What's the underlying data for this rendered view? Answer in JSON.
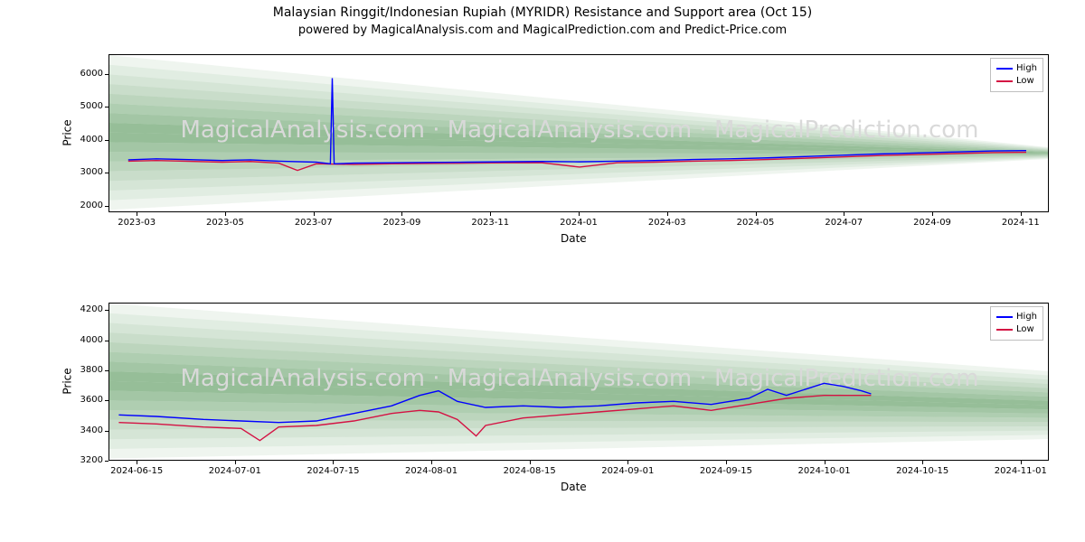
{
  "title": "Malaysian Ringgit/Indonesian Rupiah (MYRIDR) Resistance and Support area (Oct 15)",
  "subtitle": "powered by MagicalAnalysis.com and MagicalPrediction.com and Predict-Price.com",
  "watermark": "MagicalAnalysis.com · MagicalAnalysis.com · MagicalPrediction.com",
  "legend": {
    "high": "High",
    "low": "Low"
  },
  "colors": {
    "high_line": "#0000ff",
    "low_line": "#d41243",
    "fan_base": "#2e7d32",
    "background": "#ffffff",
    "axis": "#000000",
    "watermark": "#d9d9d9"
  },
  "chart1": {
    "type": "line",
    "xlabel": "Date",
    "ylabel": "Price",
    "ylim": [
      1800,
      6600
    ],
    "yticks": [
      2000,
      3000,
      4000,
      5000,
      6000
    ],
    "xticks": [
      "2023-03",
      "2023-05",
      "2023-07",
      "2023-09",
      "2023-11",
      "2024-01",
      "2024-03",
      "2024-05",
      "2024-07",
      "2024-09",
      "2024-11"
    ],
    "x_range": [
      "2023-02-10",
      "2024-11-10"
    ],
    "fan": {
      "origin_x": 0.0,
      "upper_start": 6600,
      "upper_end": 3800,
      "lower_start": 1900,
      "lower_end": 3450,
      "bands": 8
    },
    "high": [
      [
        0.02,
        3420
      ],
      [
        0.05,
        3450
      ],
      [
        0.08,
        3430
      ],
      [
        0.12,
        3400
      ],
      [
        0.15,
        3420
      ],
      [
        0.18,
        3380
      ],
      [
        0.22,
        3350
      ],
      [
        0.235,
        3300
      ],
      [
        0.237,
        5900
      ],
      [
        0.239,
        3300
      ],
      [
        0.26,
        3320
      ],
      [
        0.3,
        3330
      ],
      [
        0.34,
        3340
      ],
      [
        0.38,
        3350
      ],
      [
        0.42,
        3360
      ],
      [
        0.46,
        3370
      ],
      [
        0.5,
        3360
      ],
      [
        0.54,
        3380
      ],
      [
        0.58,
        3400
      ],
      [
        0.62,
        3430
      ],
      [
        0.66,
        3450
      ],
      [
        0.7,
        3480
      ],
      [
        0.74,
        3520
      ],
      [
        0.78,
        3560
      ],
      [
        0.82,
        3600
      ],
      [
        0.86,
        3630
      ],
      [
        0.9,
        3660
      ],
      [
        0.94,
        3690
      ],
      [
        0.975,
        3700
      ]
    ],
    "low": [
      [
        0.02,
        3380
      ],
      [
        0.05,
        3400
      ],
      [
        0.08,
        3380
      ],
      [
        0.12,
        3350
      ],
      [
        0.15,
        3370
      ],
      [
        0.18,
        3320
      ],
      [
        0.2,
        3100
      ],
      [
        0.22,
        3300
      ],
      [
        0.26,
        3280
      ],
      [
        0.3,
        3300
      ],
      [
        0.34,
        3310
      ],
      [
        0.38,
        3320
      ],
      [
        0.42,
        3330
      ],
      [
        0.46,
        3330
      ],
      [
        0.5,
        3200
      ],
      [
        0.54,
        3330
      ],
      [
        0.58,
        3350
      ],
      [
        0.62,
        3380
      ],
      [
        0.66,
        3400
      ],
      [
        0.7,
        3430
      ],
      [
        0.74,
        3470
      ],
      [
        0.78,
        3510
      ],
      [
        0.82,
        3550
      ],
      [
        0.86,
        3580
      ],
      [
        0.9,
        3610
      ],
      [
        0.94,
        3640
      ],
      [
        0.975,
        3650
      ]
    ]
  },
  "chart2": {
    "type": "line",
    "xlabel": "Date",
    "ylabel": "Price",
    "ylim": [
      3200,
      4250
    ],
    "yticks": [
      3200,
      3400,
      3600,
      3800,
      4000,
      4200
    ],
    "xticks": [
      "2024-06-15",
      "2024-07-01",
      "2024-07-15",
      "2024-08-01",
      "2024-08-15",
      "2024-09-01",
      "2024-09-15",
      "2024-10-01",
      "2024-10-15",
      "2024-11-01"
    ],
    "x_range": [
      "2024-06-12",
      "2024-11-05"
    ],
    "fan": {
      "origin_x": 0.0,
      "upper_start": 4250,
      "upper_end": 3800,
      "lower_start": 3220,
      "lower_end": 3350,
      "bands": 8
    },
    "high": [
      [
        0.01,
        3510
      ],
      [
        0.05,
        3500
      ],
      [
        0.1,
        3480
      ],
      [
        0.14,
        3470
      ],
      [
        0.18,
        3460
      ],
      [
        0.22,
        3470
      ],
      [
        0.26,
        3520
      ],
      [
        0.3,
        3570
      ],
      [
        0.33,
        3640
      ],
      [
        0.35,
        3670
      ],
      [
        0.37,
        3600
      ],
      [
        0.4,
        3560
      ],
      [
        0.44,
        3570
      ],
      [
        0.48,
        3560
      ],
      [
        0.52,
        3570
      ],
      [
        0.56,
        3590
      ],
      [
        0.6,
        3600
      ],
      [
        0.64,
        3580
      ],
      [
        0.68,
        3620
      ],
      [
        0.7,
        3680
      ],
      [
        0.72,
        3640
      ],
      [
        0.76,
        3720
      ],
      [
        0.78,
        3700
      ],
      [
        0.8,
        3670
      ],
      [
        0.81,
        3650
      ]
    ],
    "low": [
      [
        0.01,
        3460
      ],
      [
        0.05,
        3450
      ],
      [
        0.1,
        3430
      ],
      [
        0.14,
        3420
      ],
      [
        0.16,
        3340
      ],
      [
        0.18,
        3430
      ],
      [
        0.22,
        3440
      ],
      [
        0.26,
        3470
      ],
      [
        0.3,
        3520
      ],
      [
        0.33,
        3540
      ],
      [
        0.35,
        3530
      ],
      [
        0.37,
        3480
      ],
      [
        0.39,
        3370
      ],
      [
        0.4,
        3440
      ],
      [
        0.44,
        3490
      ],
      [
        0.48,
        3510
      ],
      [
        0.52,
        3530
      ],
      [
        0.56,
        3550
      ],
      [
        0.6,
        3570
      ],
      [
        0.64,
        3540
      ],
      [
        0.68,
        3580
      ],
      [
        0.72,
        3620
      ],
      [
        0.76,
        3640
      ],
      [
        0.8,
        3640
      ],
      [
        0.81,
        3640
      ]
    ]
  }
}
